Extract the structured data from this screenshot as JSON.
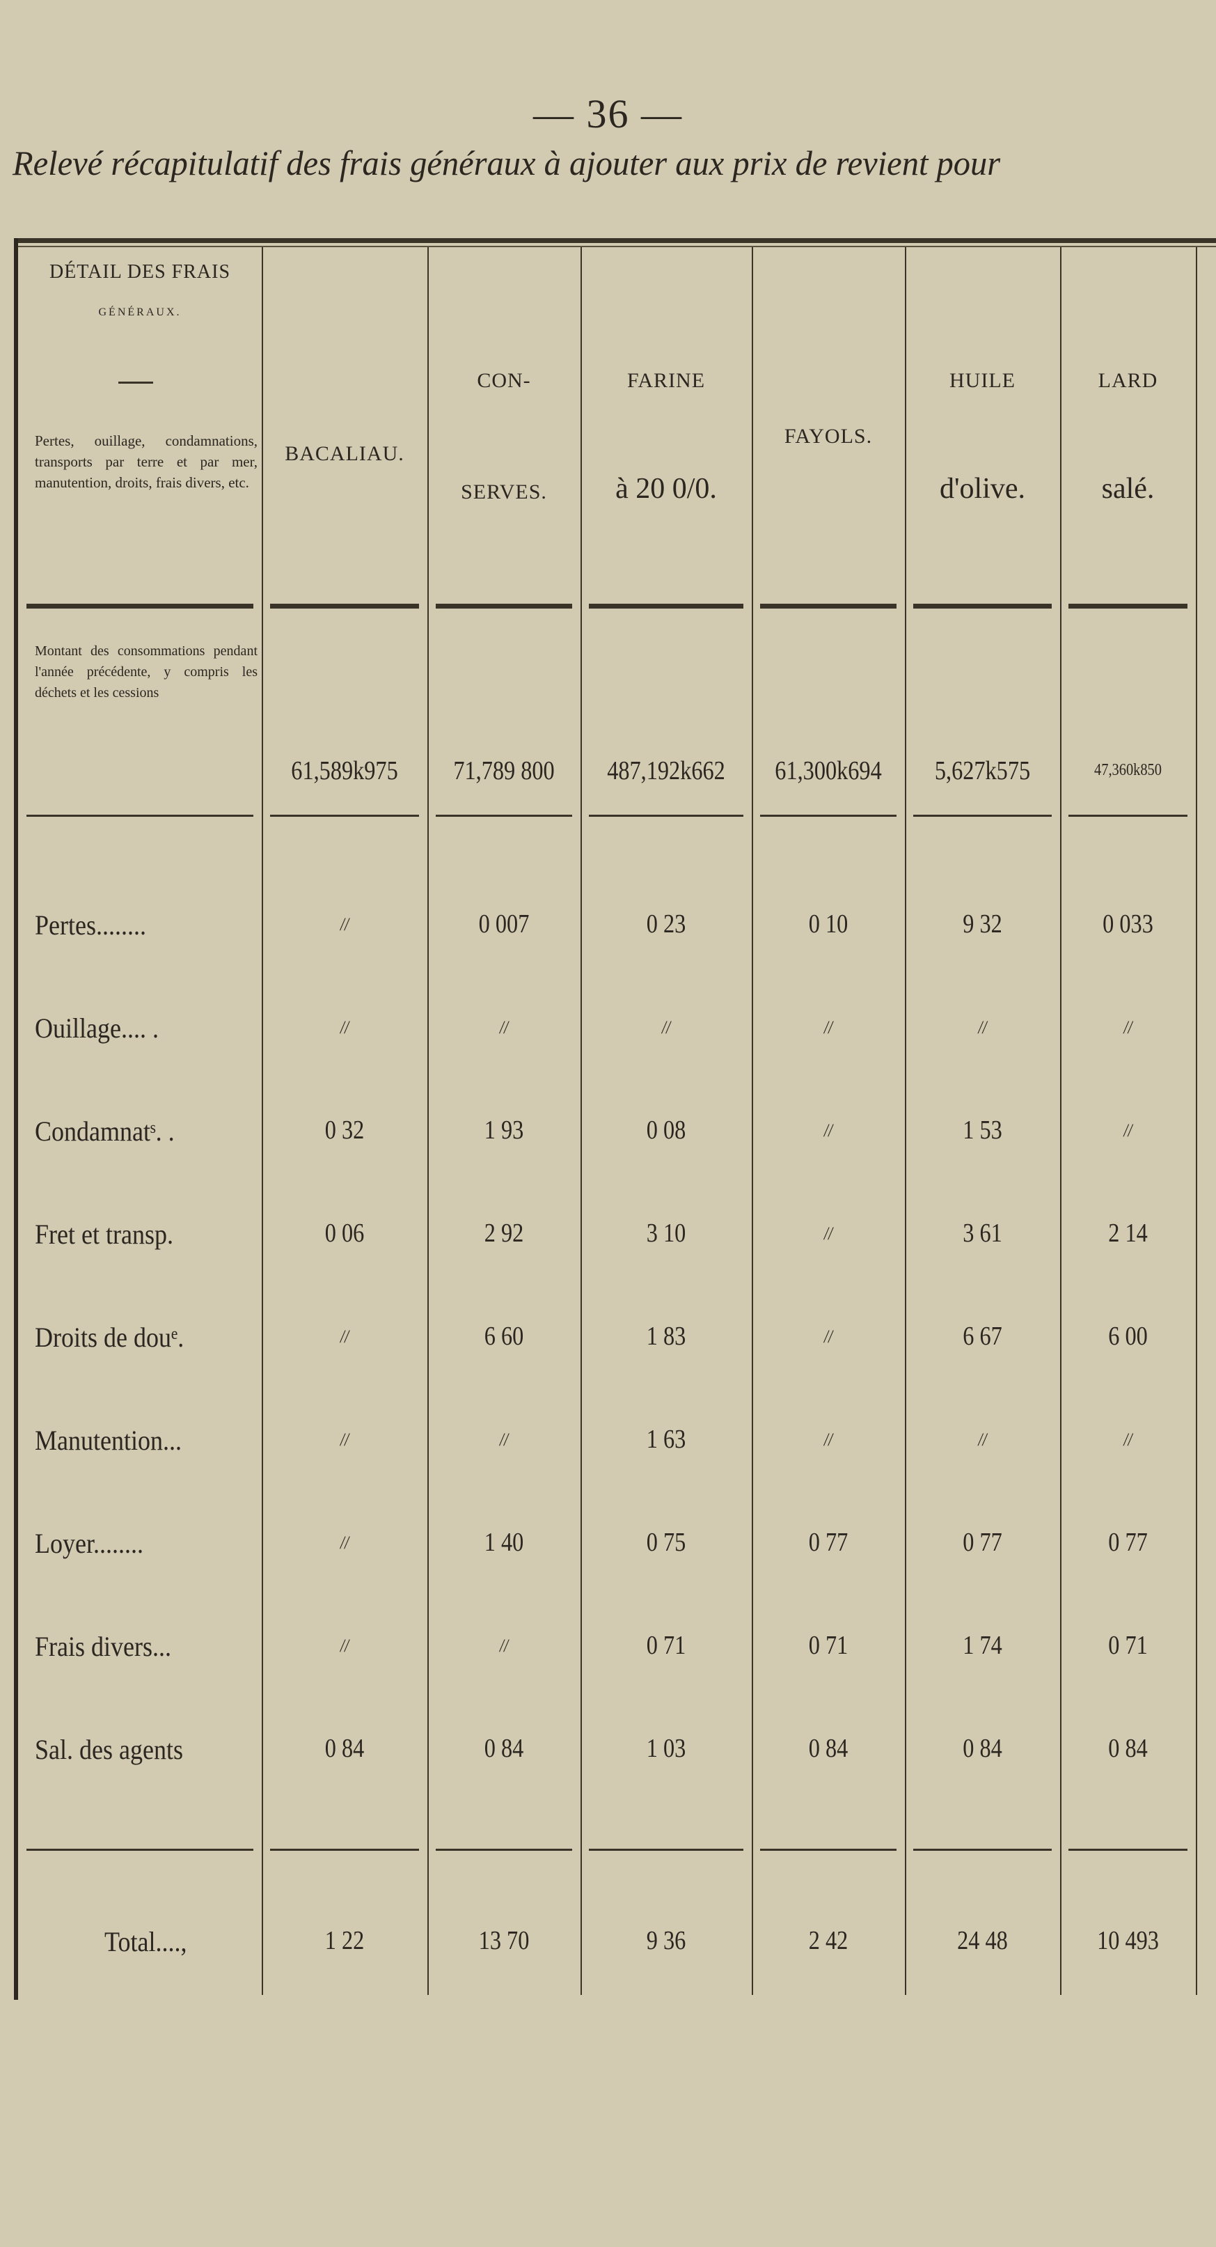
{
  "page_number": "— 36 —",
  "subtitle": "Relevé récapitulatif des frais généraux à ajouter aux prix de revient pour",
  "table": {
    "header_detail": {
      "title": "DÉTAIL DES FRAIS",
      "subtitle": "GÉNÉRAUX.",
      "description": "Pertes, ouillage, condamnations, transports par terre et par mer, manutention, droits, frais divers, etc."
    },
    "columns": [
      {
        "line1": "BACALIAU.",
        "line2": ""
      },
      {
        "line1": "CON-",
        "line2": "SERVES."
      },
      {
        "line1": "FARINE",
        "line2": "à 20 0/0."
      },
      {
        "line1": "FAYOLS.",
        "line2": ""
      },
      {
        "line1": "HUILE",
        "line2": "d'olive."
      },
      {
        "line1": "LARD",
        "line2": "salé."
      }
    ],
    "montant_label": "Montant des consommations pendant l'année précédente, y compris les déchets et les cessions",
    "montant_values": [
      "61,589k975",
      "71,789 800",
      "487,192k662",
      "61,300k694",
      "5,627k575",
      "47,360k850"
    ],
    "rows": [
      {
        "label": "Pertes........",
        "values": [
          "//",
          "0 007",
          "0 23",
          "0 10",
          "9 32",
          "0 033"
        ]
      },
      {
        "label": "Ouillage.... .",
        "values": [
          "//",
          "//",
          "//",
          "//",
          "//",
          "//"
        ]
      },
      {
        "label": "Condamnatˢ. .",
        "values": [
          "0 32",
          "1 93",
          "0 08",
          "//",
          "1 53",
          "//"
        ]
      },
      {
        "label": "Fret et transp.",
        "values": [
          "0 06",
          "2 92",
          "3 10",
          "//",
          "3 61",
          "2 14"
        ]
      },
      {
        "label": "Droits de douᵉ.",
        "values": [
          "//",
          "6 60",
          "1 83",
          "//",
          "6 67",
          "6 00"
        ]
      },
      {
        "label": "Manutention...",
        "values": [
          "//",
          "//",
          "1 63",
          "//",
          "//",
          "//"
        ]
      },
      {
        "label": "Loyer........",
        "values": [
          "//",
          "1 40",
          "0 75",
          "0 77",
          "0 77",
          "0 77"
        ]
      },
      {
        "label": "Frais divers...",
        "values": [
          "//",
          "//",
          "0 71",
          "0 71",
          "1 74",
          "0 71"
        ]
      },
      {
        "label": "Sal. des agents",
        "values": [
          "0 84",
          "0 84",
          "1 03",
          "0 84",
          "0 84",
          "0 84"
        ]
      }
    ],
    "total": {
      "label": "Total....,",
      "values": [
        "1 22",
        "13 70",
        "9 36",
        "2 42",
        "24 48",
        "10 493"
      ]
    }
  }
}
